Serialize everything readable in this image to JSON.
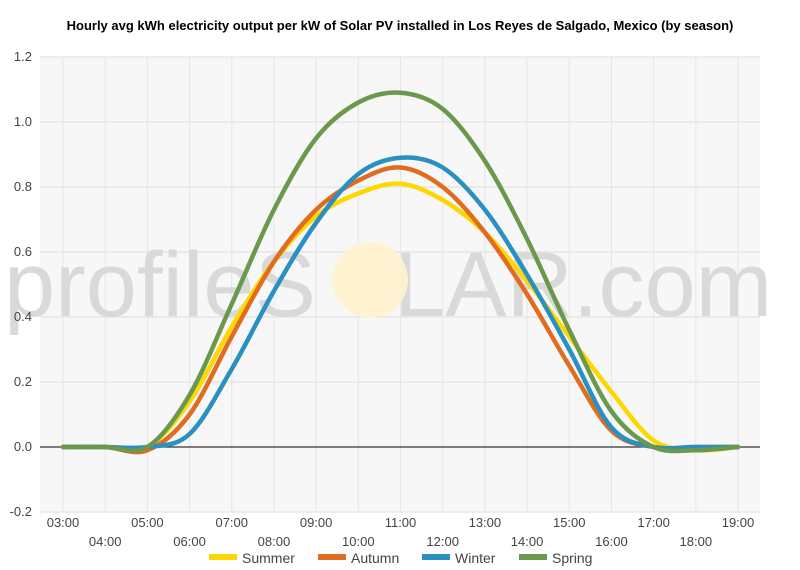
{
  "chart_data": {
    "type": "line",
    "title": "Hourly avg kWh electricity output per kW of Solar PV installed in Los Reyes de Salgado, Mexico (by season)",
    "xlabel": "",
    "ylabel": "",
    "x": [
      "03:00",
      "04:00",
      "05:00",
      "06:00",
      "07:00",
      "08:00",
      "09:00",
      "10:00",
      "11:00",
      "12:00",
      "13:00",
      "14:00",
      "15:00",
      "16:00",
      "17:00",
      "18:00",
      "19:00"
    ],
    "ylim": [
      -0.2,
      1.2
    ],
    "yticks": [
      "-0.2",
      "0.0",
      "0.2",
      "0.4",
      "0.6",
      "0.8",
      "1.0",
      "1.2"
    ],
    "ytick_values": [
      -0.2,
      0.0,
      0.2,
      0.4,
      0.6,
      0.8,
      1.0,
      1.2
    ],
    "grid": true,
    "legend_position": "bottom",
    "series": [
      {
        "name": "Summer",
        "color": "#ffd700",
        "values": [
          0.0,
          0.0,
          0.0,
          0.14,
          0.37,
          0.57,
          0.71,
          0.78,
          0.81,
          0.76,
          0.66,
          0.51,
          0.34,
          0.17,
          0.02,
          -0.01,
          0.0
        ]
      },
      {
        "name": "Autumn",
        "color": "#e06c20",
        "values": [
          0.0,
          0.0,
          -0.01,
          0.1,
          0.34,
          0.57,
          0.73,
          0.82,
          0.86,
          0.8,
          0.66,
          0.47,
          0.25,
          0.05,
          0.0,
          0.0,
          0.0
        ]
      },
      {
        "name": "Winter",
        "color": "#2a8fc1",
        "values": [
          0.0,
          0.0,
          0.0,
          0.04,
          0.24,
          0.48,
          0.69,
          0.84,
          0.89,
          0.86,
          0.73,
          0.53,
          0.3,
          0.06,
          0.0,
          0.0,
          0.0
        ]
      },
      {
        "name": "Spring",
        "color": "#6a994e",
        "values": [
          0.0,
          0.0,
          0.0,
          0.16,
          0.44,
          0.73,
          0.95,
          1.06,
          1.09,
          1.04,
          0.88,
          0.64,
          0.36,
          0.11,
          0.0,
          -0.01,
          0.0
        ]
      }
    ]
  },
  "watermark": {
    "left": "profile",
    "middle": "S",
    "right": "LAR.com"
  }
}
